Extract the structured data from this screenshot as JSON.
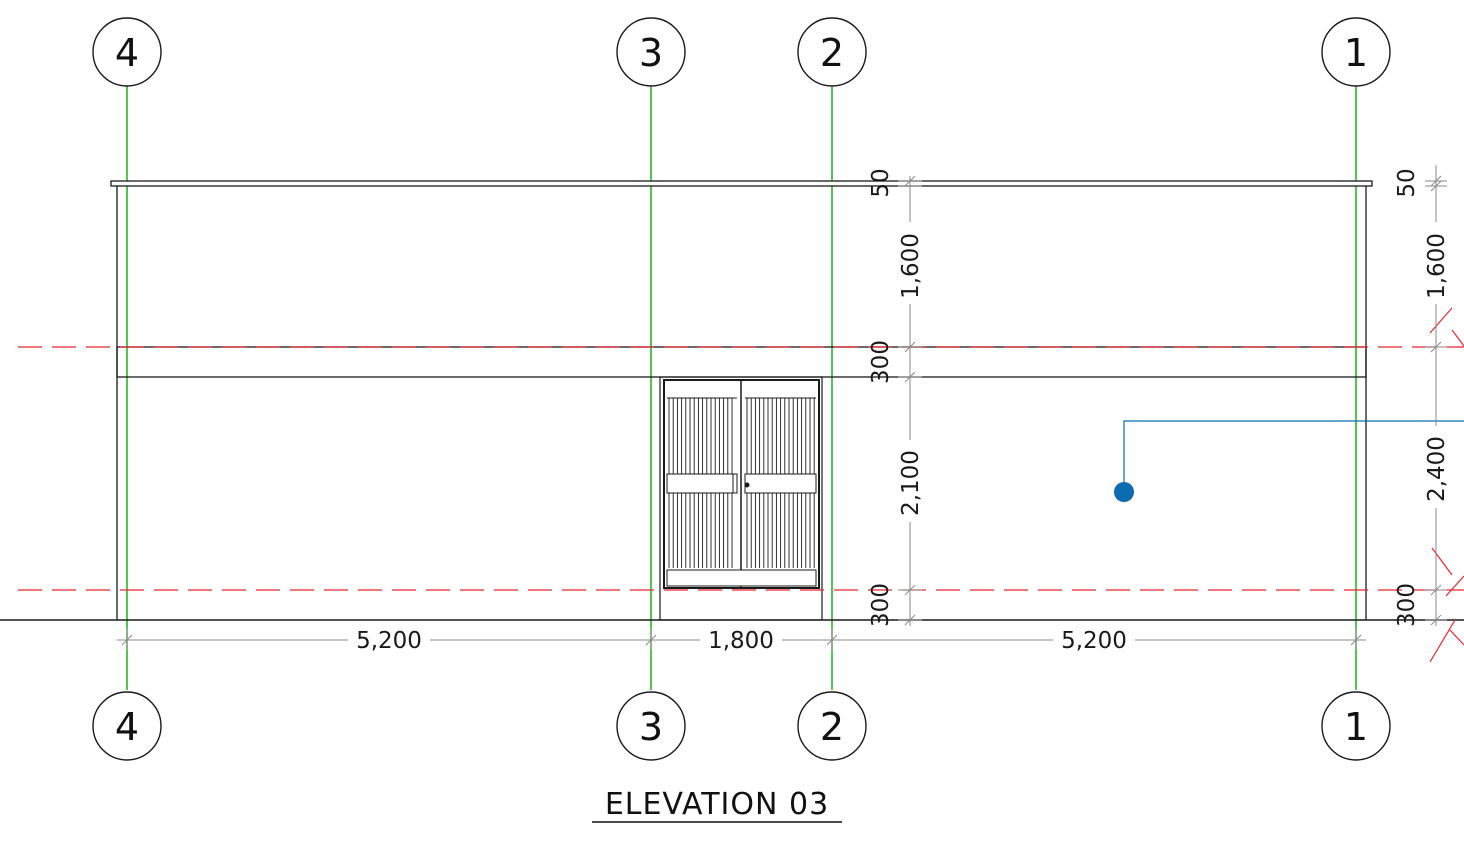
{
  "drawing": {
    "title": "ELEVATION 03",
    "grid_labels": [
      "4",
      "3",
      "2",
      "1"
    ],
    "horizontal_dims": [
      "5,200",
      "1,800",
      "5,200"
    ],
    "vertical_dims_mid": [
      "50",
      "1,600",
      "300",
      "2,100",
      "300"
    ],
    "vertical_dims_right": [
      "50",
      "1,600",
      "2,400",
      "300"
    ]
  },
  "colors": {
    "gridline": "#19b219",
    "level_line": "#e8262d",
    "annotation": "#0b6db0",
    "linework": "#1a1a1a",
    "dim_line": "#8a8a8a"
  }
}
